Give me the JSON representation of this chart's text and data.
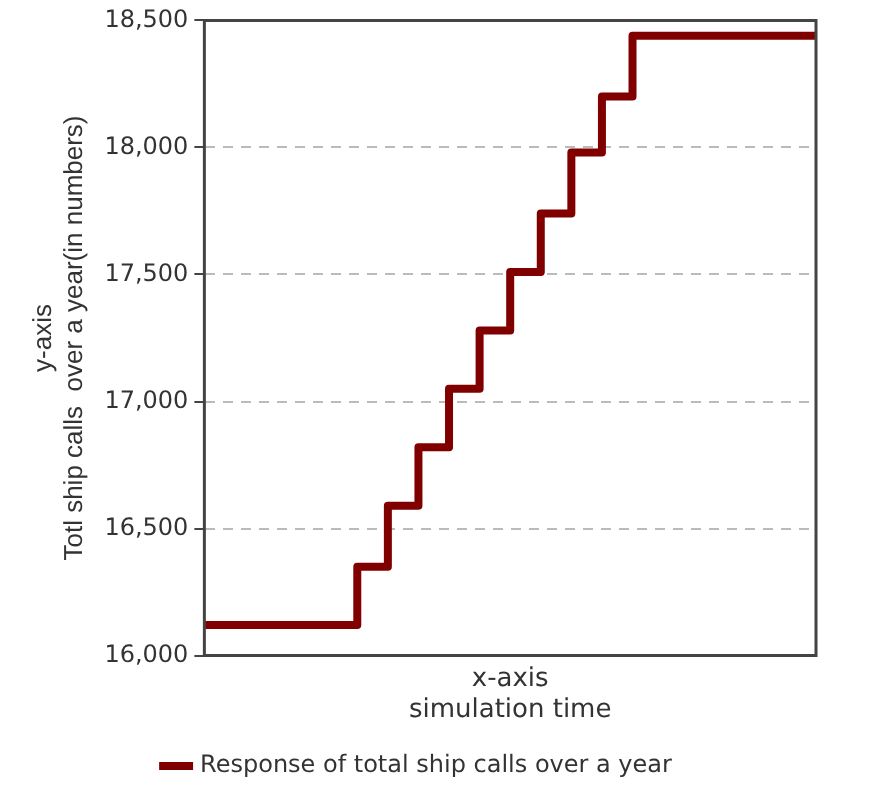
{
  "chart_data": {
    "type": "step",
    "xlabel": "x-axis\nsimulation time",
    "ylabel": "y-axis\nTotl ship calls  over a year(in numbers)",
    "categories": [
      null,
      null,
      null,
      null,
      null,
      null,
      null,
      null,
      null,
      null,
      null,
      null,
      null,
      null,
      null,
      null,
      null,
      null,
      null,
      null,
      null
    ],
    "series": [
      {
        "name": "Response of total ship calls over a year",
        "color": "#800000",
        "values": [
          16120,
          16120,
          16120,
          16120,
          16120,
          16120,
          16350,
          16590,
          16820,
          17050,
          17280,
          17510,
          17740,
          17980,
          18200,
          18440,
          18440,
          18440,
          18440,
          18440,
          18440
        ]
      }
    ],
    "ylim": [
      16000,
      18500
    ],
    "yticks": [
      {
        "value": 16000,
        "label": "16,000"
      },
      {
        "value": 16500,
        "label": "16,500"
      },
      {
        "value": 17000,
        "label": "17,000"
      },
      {
        "value": 17500,
        "label": "17,500"
      },
      {
        "value": 18000,
        "label": "18,000"
      },
      {
        "value": 18500,
        "label": "18,500"
      }
    ],
    "grid": "y",
    "legend": "bottom",
    "marker": "none",
    "line_style": "solid",
    "tick_labels": "y"
  }
}
